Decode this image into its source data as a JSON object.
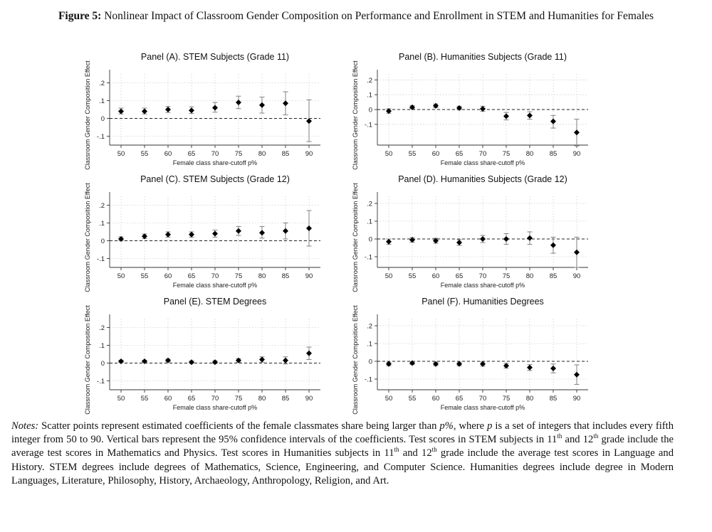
{
  "figure": {
    "label": "Figure 5:",
    "title": "Nonlinear Impact of Classroom Gender Composition on Performance and Enrollment in STEM and Humanities for Females"
  },
  "notes": {
    "label": "Notes:",
    "p1": "Scatter points represent estimated coefficients of the female classmates share being larger than",
    "p_pct": "p%",
    "p2": ", where",
    "p_var": "p",
    "p3": "is a set of integers that includes every fifth integer from 50 to 90. Vertical bars represent the 95% confidence intervals of the coefficients. Test scores in STEM subjects in 11",
    "sup_th": "th",
    "p4": "and 12",
    "p5": "grade include the average test scores in Mathematics and Physics. Test scores in Humanities subjects in 11",
    "p6": "and 12",
    "p7": "grade include the average test scores in Language and History. STEM degrees include degrees of Mathematics, Science, Engineering, and Computer Science. Humanities degrees include degree in Modern Languages, Literature, Philosophy, History, Archaeology, Anthropology, Religion, and Art."
  },
  "style": {
    "marker_color": "#000000",
    "ci_color": "#8a8a8a",
    "grid_color": "#cfcfcf"
  },
  "chart_data": [
    {
      "type": "scatter",
      "title": "Panel (A). STEM Subjects (Grade 11)",
      "xlabel": "Female class share-cutoff p%",
      "ylabel": "Classroom Gender Composition Effect",
      "x": [
        50,
        55,
        60,
        65,
        70,
        75,
        80,
        85,
        90
      ],
      "y": [
        0.04,
        0.04,
        0.05,
        0.045,
        0.06,
        0.09,
        0.075,
        0.085,
        -0.015
      ],
      "ci_low": [
        0.025,
        0.025,
        0.033,
        0.028,
        0.035,
        0.055,
        0.03,
        0.02,
        -0.13
      ],
      "ci_high": [
        0.058,
        0.058,
        0.067,
        0.065,
        0.09,
        0.125,
        0.12,
        0.15,
        0.105
      ],
      "xticks": [
        50,
        55,
        60,
        65,
        70,
        75,
        80,
        85,
        90
      ],
      "yticks": [
        -0.1,
        0,
        0.1,
        0.2
      ],
      "ytick_labels": [
        "-.1",
        "0",
        ".1",
        ".2"
      ],
      "ylim": [
        -0.15,
        0.25
      ],
      "grid": true,
      "zero_line": "dashed"
    },
    {
      "type": "scatter",
      "title": "Panel (B). Humanities Subjects (Grade 11)",
      "xlabel": "Female class share-cutoff p%",
      "ylabel": "Classroom Gender Composition Effect",
      "x": [
        50,
        55,
        60,
        65,
        70,
        75,
        80,
        85,
        90
      ],
      "y": [
        -0.01,
        0.015,
        0.025,
        0.01,
        0.005,
        -0.045,
        -0.04,
        -0.08,
        -0.155
      ],
      "ci_low": [
        -0.025,
        0.005,
        0.013,
        -0.002,
        -0.012,
        -0.07,
        -0.065,
        -0.125,
        -0.245
      ],
      "ci_high": [
        0.005,
        0.027,
        0.037,
        0.022,
        0.022,
        -0.02,
        -0.015,
        -0.04,
        -0.065
      ],
      "xticks": [
        50,
        55,
        60,
        65,
        70,
        75,
        80,
        85,
        90
      ],
      "yticks": [
        -0.1,
        0,
        0.1,
        0.2
      ],
      "ytick_labels": [
        "-.1",
        "0",
        ".1",
        ".2"
      ],
      "ylim": [
        -0.24,
        0.24
      ],
      "grid": true,
      "zero_line": "dashed"
    },
    {
      "type": "scatter",
      "title": "Panel (C). STEM Subjects (Grade 12)",
      "xlabel": "Female class share-cutoff p%",
      "ylabel": "Classroom Gender Composition Effect",
      "x": [
        50,
        55,
        60,
        65,
        70,
        75,
        80,
        85,
        90
      ],
      "y": [
        0.01,
        0.025,
        0.035,
        0.035,
        0.04,
        0.055,
        0.045,
        0.055,
        0.07
      ],
      "ci_low": [
        0.0,
        0.012,
        0.02,
        0.02,
        0.02,
        0.03,
        0.015,
        0.01,
        -0.03
      ],
      "ci_high": [
        0.022,
        0.038,
        0.05,
        0.05,
        0.06,
        0.08,
        0.08,
        0.1,
        0.17
      ],
      "xticks": [
        50,
        55,
        60,
        65,
        70,
        75,
        80,
        85,
        90
      ],
      "yticks": [
        -0.1,
        0,
        0.1,
        0.2
      ],
      "ytick_labels": [
        "-.1",
        "0",
        ".1",
        ".2"
      ],
      "ylim": [
        -0.15,
        0.25
      ],
      "grid": true,
      "zero_line": "dashed"
    },
    {
      "type": "scatter",
      "title": "Panel (D). Humanities Subjects (Grade 12)",
      "xlabel": "Female class share-cutoff p%",
      "ylabel": "Classroom Gender Composition Effect",
      "x": [
        50,
        55,
        60,
        65,
        70,
        75,
        80,
        85,
        90
      ],
      "y": [
        -0.015,
        -0.005,
        -0.01,
        -0.02,
        0.0,
        0.0,
        0.005,
        -0.035,
        -0.075
      ],
      "ci_low": [
        -0.03,
        -0.018,
        -0.024,
        -0.036,
        -0.02,
        -0.03,
        -0.03,
        -0.08,
        -0.16
      ],
      "ci_high": [
        0.0,
        0.008,
        0.004,
        -0.004,
        0.02,
        0.03,
        0.04,
        0.01,
        0.01
      ],
      "xticks": [
        50,
        55,
        60,
        65,
        70,
        75,
        80,
        85,
        90
      ],
      "yticks": [
        -0.1,
        0,
        0.1,
        0.2
      ],
      "ytick_labels": [
        "-.1",
        "0",
        ".1",
        ".2"
      ],
      "ylim": [
        -0.16,
        0.24
      ],
      "grid": true,
      "zero_line": "dashed"
    },
    {
      "type": "scatter",
      "title": "Panel (E). STEM Degrees",
      "xlabel": "Female class share-cutoff p%",
      "ylabel": "Classroom Gender Composition Effect",
      "x": [
        50,
        55,
        60,
        65,
        70,
        75,
        80,
        85,
        90
      ],
      "y": [
        0.01,
        0.01,
        0.015,
        0.005,
        0.005,
        0.015,
        0.02,
        0.015,
        0.055
      ],
      "ci_low": [
        0.004,
        0.004,
        0.007,
        -0.002,
        -0.003,
        0.005,
        0.005,
        -0.005,
        0.02
      ],
      "ci_high": [
        0.016,
        0.016,
        0.023,
        0.012,
        0.013,
        0.025,
        0.035,
        0.035,
        0.09
      ],
      "xticks": [
        50,
        55,
        60,
        65,
        70,
        75,
        80,
        85,
        90
      ],
      "yticks": [
        -0.1,
        0,
        0.1,
        0.2
      ],
      "ytick_labels": [
        "-.1",
        "0",
        ".1",
        ".2"
      ],
      "ylim": [
        -0.15,
        0.25
      ],
      "grid": true,
      "zero_line": "dashed"
    },
    {
      "type": "scatter",
      "title": "Panel (F). Humanities Degrees",
      "xlabel": "Female class share-cutoff p%",
      "ylabel": "Classroom Gender Composition Effect",
      "x": [
        50,
        55,
        60,
        65,
        70,
        75,
        80,
        85,
        90
      ],
      "y": [
        -0.015,
        -0.01,
        -0.015,
        -0.015,
        -0.015,
        -0.025,
        -0.035,
        -0.04,
        -0.075
      ],
      "ci_low": [
        -0.025,
        -0.018,
        -0.025,
        -0.025,
        -0.027,
        -0.038,
        -0.052,
        -0.065,
        -0.13
      ],
      "ci_high": [
        -0.005,
        -0.002,
        -0.005,
        -0.005,
        -0.003,
        -0.012,
        -0.018,
        -0.015,
        -0.02
      ],
      "xticks": [
        50,
        55,
        60,
        65,
        70,
        75,
        80,
        85,
        90
      ],
      "yticks": [
        -0.1,
        0,
        0.1,
        0.2
      ],
      "ytick_labels": [
        "-.1",
        "0",
        ".1",
        ".2"
      ],
      "ylim": [
        -0.16,
        0.24
      ],
      "grid": true,
      "zero_line": "dashed"
    }
  ]
}
